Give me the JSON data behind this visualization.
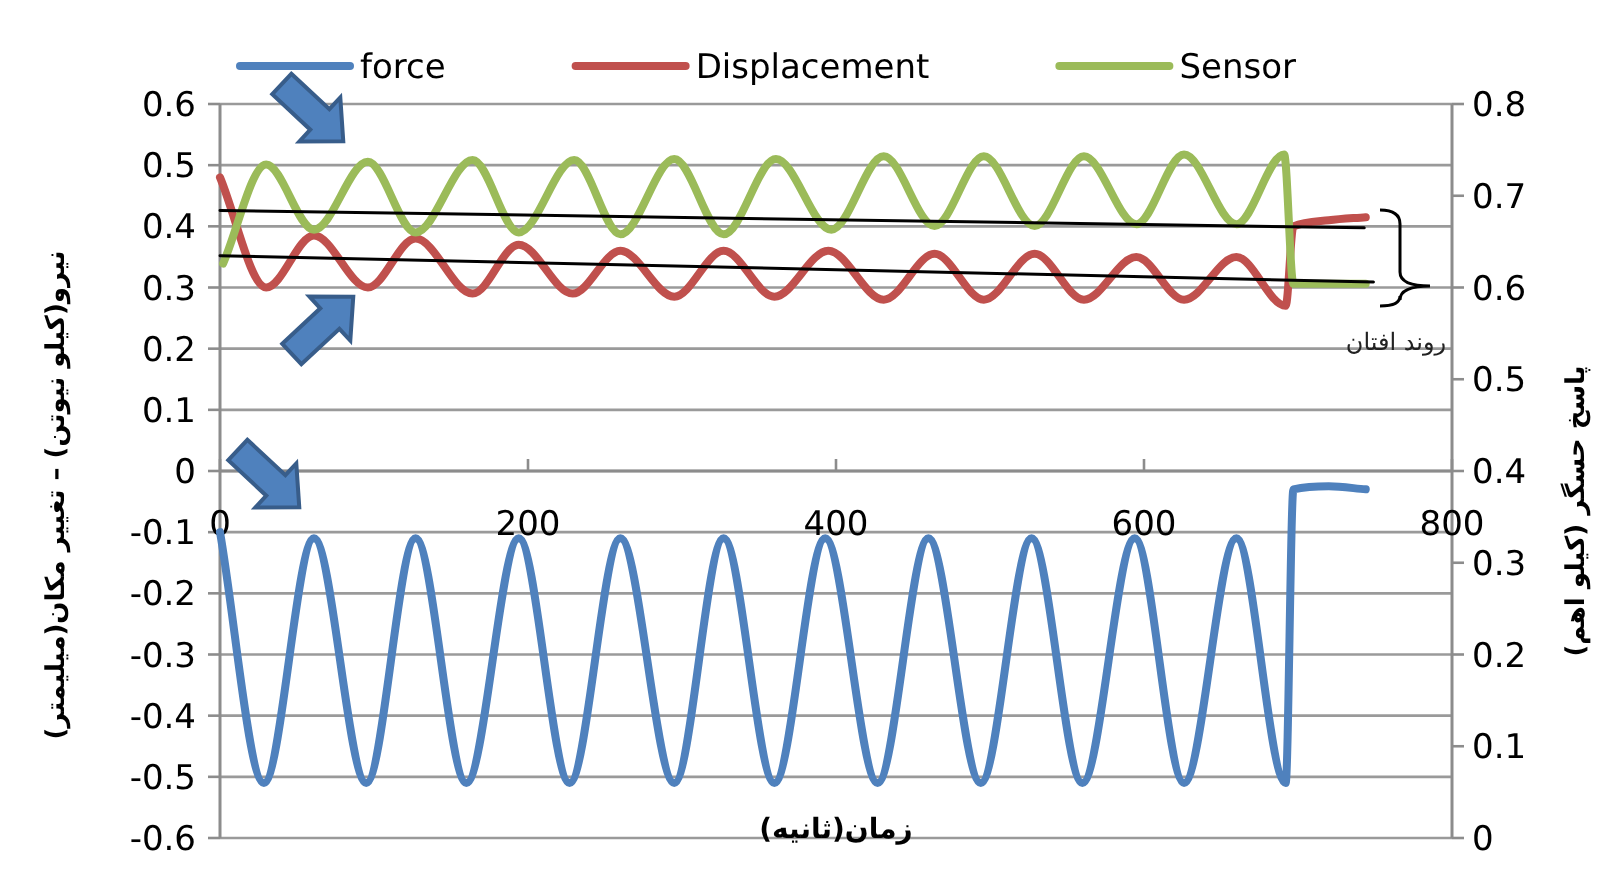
{
  "chart_data": {
    "type": "line",
    "xlabel": "زمان(ثانیه)",
    "ylabel": "نیرو(کیلو نیوتن) – تغییر مکان(میلیمتر)",
    "y2label": "پاسخ حسگر (کیلو اهم)",
    "xlim": [
      0,
      800
    ],
    "xticks": [
      0,
      200,
      400,
      600,
      800
    ],
    "ylim": [
      -0.6,
      0.6
    ],
    "yticks": [
      -0.6,
      -0.5,
      -0.4,
      -0.3,
      -0.2,
      -0.1,
      0,
      0.1,
      0.2,
      0.3,
      0.4,
      0.5,
      0.6
    ],
    "y2lim": [
      0,
      0.8
    ],
    "y2ticks": [
      0,
      0.1,
      0.2,
      0.3,
      0.4,
      0.5,
      0.6,
      0.7,
      0.8
    ],
    "grid": "y",
    "legend": "top",
    "annotations": [
      "روند افتان"
    ],
    "series": [
      {
        "name": "force",
        "color": "#4f81bd",
        "x": [
          0,
          28.5,
          61,
          95,
          127,
          160,
          194,
          227,
          260,
          295,
          327,
          360,
          393,
          427,
          460,
          494,
          527,
          560,
          594,
          626,
          660,
          692,
          697,
          720,
          744
        ],
        "values": [
          -0.1,
          -0.51,
          -0.11,
          -0.51,
          -0.11,
          -0.51,
          -0.11,
          -0.51,
          -0.11,
          -0.51,
          -0.11,
          -0.51,
          -0.11,
          -0.51,
          -0.11,
          -0.51,
          -0.11,
          -0.51,
          -0.11,
          -0.51,
          -0.11,
          -0.51,
          -0.03,
          -0.025,
          -0.03
        ]
      },
      {
        "name": "Displacement",
        "color": "#c0504d",
        "x": [
          0,
          30,
          61,
          96,
          127,
          164,
          194,
          229,
          260,
          295,
          327,
          360,
          395,
          431,
          464,
          496,
          529,
          561,
          595,
          626,
          660,
          692,
          697,
          720,
          744
        ],
        "values": [
          0.48,
          0.3,
          0.385,
          0.3,
          0.38,
          0.29,
          0.37,
          0.29,
          0.36,
          0.285,
          0.36,
          0.285,
          0.36,
          0.28,
          0.355,
          0.28,
          0.355,
          0.28,
          0.35,
          0.28,
          0.35,
          0.27,
          0.4,
          0.41,
          0.415
        ]
      },
      {
        "name": "Sensor",
        "color": "#9bbb59",
        "axis": "y2",
        "x": [
          2,
          30,
          61,
          96,
          127,
          164,
          194,
          230,
          260,
          295,
          327,
          361,
          397,
          431,
          464,
          496,
          529,
          561,
          595,
          626,
          660,
          691,
          697,
          744
        ],
        "values": [
          0.626,
          0.734,
          0.663,
          0.737,
          0.66,
          0.739,
          0.66,
          0.739,
          0.658,
          0.74,
          0.658,
          0.74,
          0.663,
          0.743,
          0.667,
          0.743,
          0.667,
          0.743,
          0.669,
          0.745,
          0.669,
          0.745,
          0.604,
          0.604
        ]
      },
      {
        "type": "line",
        "color": "#000000",
        "axis": "y2",
        "x": [
          0,
          743
        ],
        "values": [
          0.684,
          0.665
        ]
      },
      {
        "type": "line",
        "color": "#000000",
        "x": [
          0,
          749
        ],
        "values": [
          0.352,
          0.309
        ]
      }
    ]
  }
}
